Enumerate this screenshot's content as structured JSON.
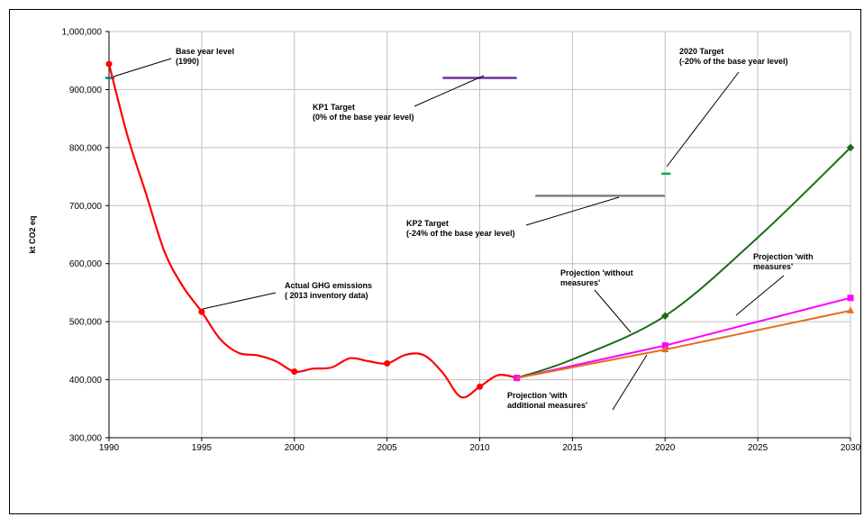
{
  "chart_data": {
    "type": "line",
    "title": "",
    "xlabel": "",
    "ylabel": "kt CO2 eq",
    "xlim": [
      1990,
      2030
    ],
    "ylim": [
      300000,
      1000000
    ],
    "x_ticks": [
      "1990",
      "1995",
      "2000",
      "2005",
      "2010",
      "2015",
      "2020",
      "2025",
      "2030"
    ],
    "y_ticks": [
      "300,000",
      "400,000",
      "500,000",
      "600,000",
      "700,000",
      "800,000",
      "900,000",
      "1,000,000"
    ],
    "grid": true,
    "series": [
      {
        "name": "Actual GHG emissions ( 2013 inventory data)",
        "color": "#ff0000",
        "x": [
          1990,
          1991,
          1992,
          1993,
          1994,
          1995,
          1996,
          1997,
          1998,
          1999,
          2000,
          2001,
          2002,
          2003,
          2004,
          2005,
          2006,
          2007,
          2008,
          2009,
          2010,
          2011,
          2012
        ],
        "y": [
          944000,
          820000,
          720000,
          620000,
          560000,
          517000,
          470000,
          446000,
          442000,
          432000,
          414000,
          419000,
          421000,
          437000,
          432000,
          428000,
          443000,
          442000,
          412000,
          370000,
          388000,
          408000,
          403000
        ],
        "markers_x": [
          1990,
          1995,
          2000,
          2005,
          2010,
          2012
        ],
        "markers_y": [
          944000,
          517000,
          414000,
          428000,
          388000,
          403000
        ]
      },
      {
        "name": "Projection 'without measures'",
        "color": "#1a6b1a",
        "x": [
          2012,
          2015,
          2020,
          2025,
          2030
        ],
        "y": [
          403000,
          435000,
          510000,
          645000,
          800000
        ],
        "markers_x": [
          2020,
          2030
        ],
        "markers_y": [
          510000,
          800000
        ]
      },
      {
        "name": "Projection 'with measures'",
        "color": "#ff00ff",
        "x": [
          2012,
          2020,
          2030
        ],
        "y": [
          403000,
          459000,
          541000
        ],
        "markers_x": [
          2012,
          2020,
          2030
        ],
        "markers_y": [
          403000,
          459000,
          541000
        ]
      },
      {
        "name": "Projection 'with additional measures'",
        "color": "#e07020",
        "x": [
          2012,
          2020,
          2030
        ],
        "y": [
          403000,
          452000,
          519000
        ],
        "markers_x": [
          2020,
          2030
        ],
        "markers_y": [
          452000,
          519000
        ]
      }
    ],
    "targets": [
      {
        "name": "Base year level (1990)",
        "color": "#008080",
        "x": [
          1989.8,
          1990.3
        ],
        "y": 920000
      },
      {
        "name": "KP1 Target (0% of the base year level)",
        "color": "#7030a0",
        "x": [
          2008,
          2012
        ],
        "y": 920000
      },
      {
        "name": "KP2 Target (-24% of the base year level)",
        "color": "#808080",
        "x": [
          2013,
          2020
        ],
        "y": 717000
      },
      {
        "name": "2020 Target (-20% of the base year level)",
        "color": "#00b050",
        "x": [
          2019.8,
          2020.3
        ],
        "y": 755000
      }
    ],
    "annotations": [
      {
        "lines": [
          "Base year level",
          "(1990)"
        ]
      },
      {
        "lines": [
          "KP1 Target",
          "(0% of the base year level)"
        ]
      },
      {
        "lines": [
          "2020 Target",
          "(-20% of the base year level)"
        ]
      },
      {
        "lines": [
          "KP2 Target",
          "(-24% of the base year level)"
        ]
      },
      {
        "lines": [
          "Actual GHG emissions",
          "( 2013  inventory data)"
        ]
      },
      {
        "lines": [
          "Projection 'without",
          "measures'"
        ]
      },
      {
        "lines": [
          "Projection 'with",
          "measures'"
        ]
      },
      {
        "lines": [
          "Projection 'with",
          "additional  measures'"
        ]
      }
    ]
  }
}
